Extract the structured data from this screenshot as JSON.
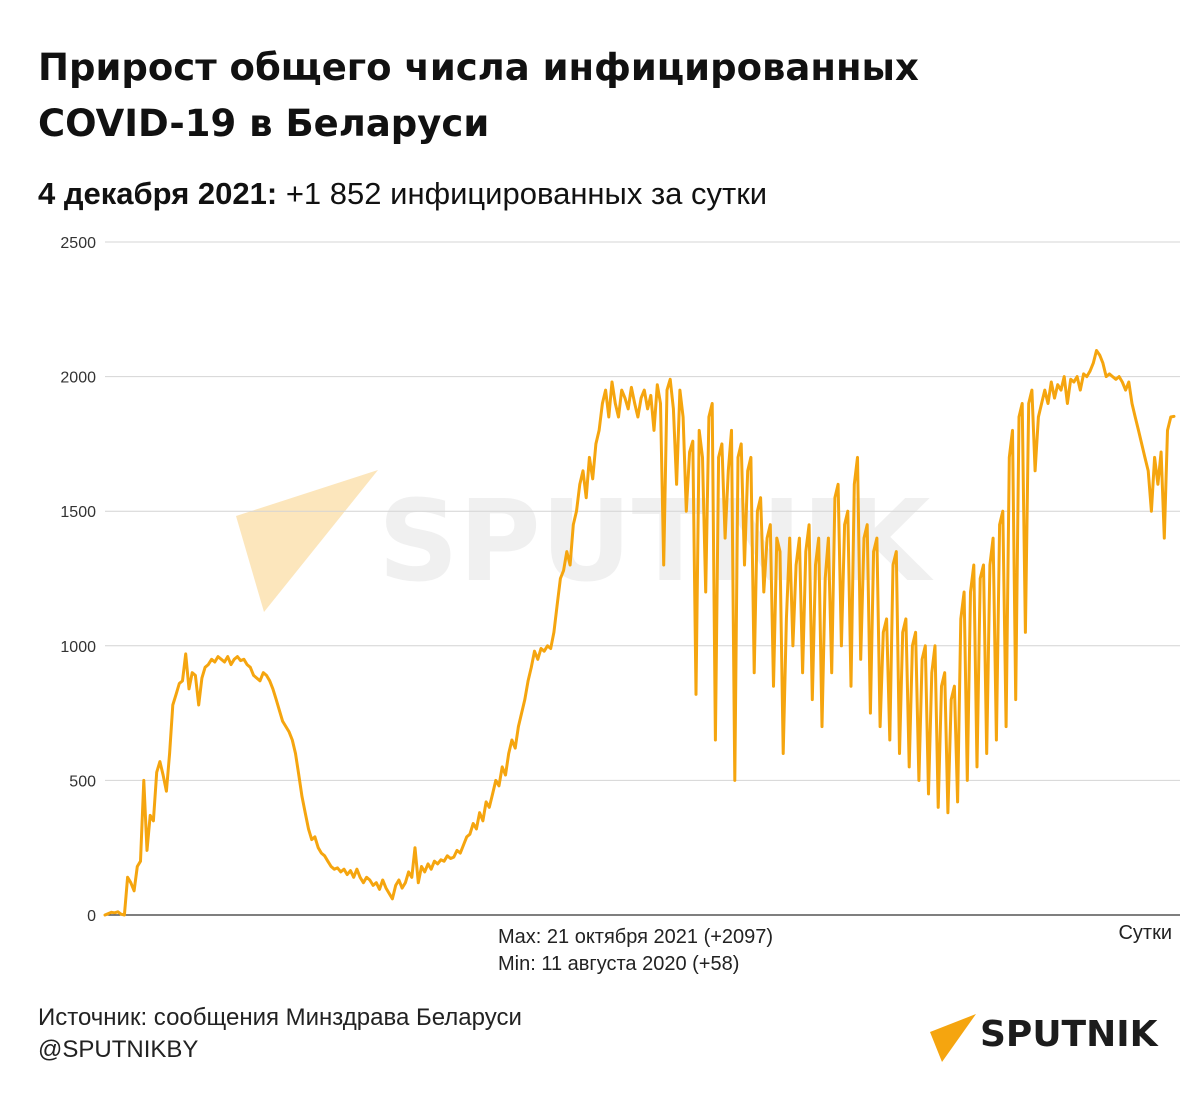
{
  "title_line1": "Прирост общего числа инфицированных",
  "title_line2": "COVID-19 в Беларуси",
  "subtitle": {
    "date": "4 декабря 2021:",
    "delta": "+1 852",
    "unit": "инфицированных за сутки"
  },
  "notes": {
    "max": "Max: 21 октября 2021 (+2097)",
    "min": "Min: 11 августа 2020 (+58)"
  },
  "footer": {
    "source": "Источник: сообщения Минздрава Беларуси",
    "handle": "@SPUTNIKBY"
  },
  "logo": {
    "text": "SPUTNIK",
    "icon": "sputnik-arrow-icon"
  },
  "watermark": {
    "text": "SPUTNIK"
  },
  "colors": {
    "series": "#f5a50f",
    "grid": "#d4d4d4",
    "logo_orange": "#f5a50f"
  },
  "chart_data": {
    "type": "line",
    "title": "Прирост общего числа инфицированных COVID-19 в Беларуси",
    "xlabel": "Сутки",
    "ylabel": "",
    "ylim": [
      0,
      2500
    ],
    "yticks": [
      0,
      500,
      1000,
      1500,
      2000,
      2500
    ],
    "grid": true,
    "legend": "none",
    "series": [
      {
        "values": [
          0,
          5,
          10,
          8,
          12,
          3,
          0,
          140,
          120,
          90,
          180,
          200,
          500,
          240,
          370,
          350,
          530,
          570,
          520,
          460,
          600,
          780,
          820,
          860,
          870,
          970,
          840,
          900,
          890,
          780,
          880,
          920,
          930,
          950,
          940,
          960,
          950,
          940,
          960,
          930,
          950,
          960,
          945,
          950,
          930,
          920,
          890,
          880,
          870,
          900,
          890,
          870,
          840,
          800,
          760,
          720,
          700,
          680,
          650,
          600,
          520,
          440,
          380,
          320,
          280,
          290,
          250,
          230,
          220,
          200,
          180,
          170,
          175,
          160,
          170,
          150,
          165,
          140,
          170,
          140,
          120,
          140,
          130,
          110,
          120,
          95,
          130,
          100,
          80,
          60,
          110,
          130,
          100,
          120,
          160,
          140,
          250,
          120,
          180,
          160,
          190,
          170,
          200,
          190,
          205,
          200,
          220,
          210,
          215,
          240,
          230,
          260,
          290,
          300,
          340,
          320,
          380,
          350,
          420,
          400,
          450,
          500,
          480,
          550,
          520,
          600,
          650,
          620,
          700,
          750,
          800,
          870,
          920,
          980,
          950,
          990,
          980,
          1000,
          990,
          1050,
          1150,
          1250,
          1280,
          1350,
          1300,
          1450,
          1500,
          1600,
          1650,
          1550,
          1700,
          1620,
          1750,
          1800,
          1900,
          1950,
          1850,
          1980,
          1900,
          1850,
          1950,
          1920,
          1880,
          1960,
          1900,
          1850,
          1920,
          1950,
          1880,
          1930,
          1800,
          1970,
          1900,
          1300,
          1950,
          1990,
          1880,
          1600,
          1950,
          1850,
          1500,
          1720,
          1760,
          820,
          1800,
          1700,
          1200,
          1850,
          1900,
          650,
          1700,
          1750,
          1400,
          1650,
          1800,
          500,
          1700,
          1750,
          1300,
          1650,
          1700,
          900,
          1500,
          1550,
          1200,
          1400,
          1450,
          850,
          1400,
          1350,
          600,
          1100,
          1400,
          1000,
          1300,
          1400,
          900,
          1350,
          1450,
          800,
          1300,
          1400,
          700,
          1250,
          1400,
          900,
          1550,
          1600,
          1000,
          1450,
          1500,
          850,
          1600,
          1700,
          950,
          1400,
          1450,
          750,
          1350,
          1400,
          700,
          1050,
          1100,
          650,
          1300,
          1350,
          600,
          1050,
          1100,
          550,
          1000,
          1050,
          500,
          950,
          1000,
          450,
          900,
          1000,
          400,
          850,
          900,
          380,
          800,
          850,
          420,
          1100,
          1200,
          500,
          1200,
          1300,
          550,
          1250,
          1300,
          600,
          1300,
          1400,
          650,
          1450,
          1500,
          700,
          1700,
          1800,
          800,
          1850,
          1900,
          1050,
          1900,
          1950,
          1650,
          1850,
          1900,
          1950,
          1900,
          1980,
          1920,
          1970,
          1950,
          2000,
          1900,
          1990,
          1980,
          2000,
          1950,
          2010,
          2000,
          2020,
          2050,
          2097,
          2080,
          2050,
          2000,
          2010,
          2000,
          1990,
          2000,
          1980,
          1950,
          1980,
          1900,
          1850,
          1800,
          1750,
          1700,
          1650,
          1500,
          1700,
          1600,
          1720,
          1400,
          1800,
          1850,
          1852
        ]
      }
    ]
  }
}
